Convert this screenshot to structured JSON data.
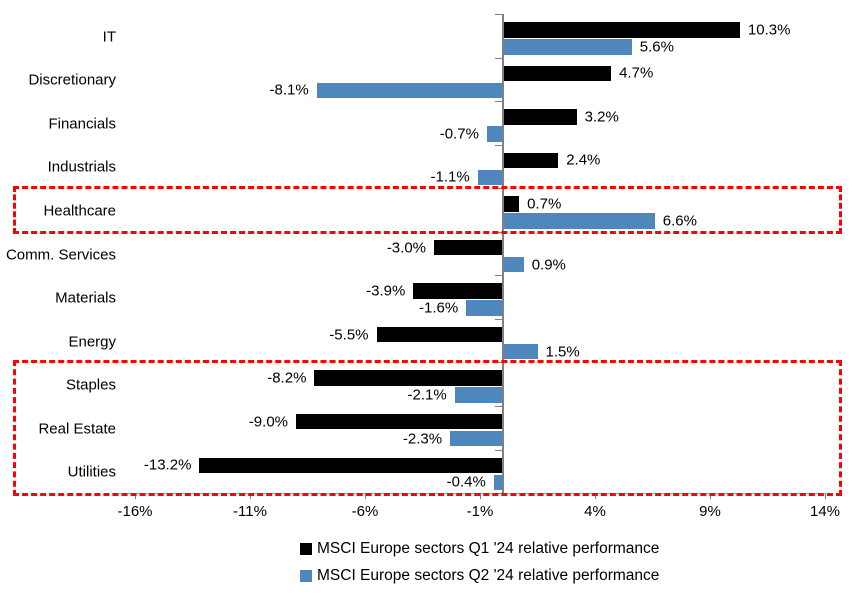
{
  "chart_data": {
    "type": "bar",
    "orientation": "horizontal",
    "title": "",
    "categories": [
      "IT",
      "Discretionary",
      "Financials",
      "Industrials",
      "Healthcare",
      "Comm. Services",
      "Materials",
      "Energy",
      "Staples",
      "Real Estate",
      "Utilities"
    ],
    "series": [
      {
        "name": "MSCI Europe sectors Q1 '24 relative performance",
        "color": "#000000",
        "values": [
          10.3,
          4.7,
          3.2,
          2.4,
          0.7,
          -3.0,
          -3.9,
          -5.5,
          -8.2,
          -9.0,
          -13.2
        ],
        "labels": [
          "10.3%",
          "4.7%",
          "3.2%",
          "2.4%",
          "0.7%",
          "-3.0%",
          "-3.9%",
          "-5.5%",
          "-8.2%",
          "-9.0%",
          "-13.2%"
        ]
      },
      {
        "name": "MSCI Europe sectors Q2 '24 relative performance",
        "color": "#4e86be",
        "values": [
          5.6,
          -8.1,
          -0.7,
          -1.1,
          6.6,
          0.9,
          -1.6,
          1.5,
          -2.1,
          -2.3,
          -0.4
        ],
        "labels": [
          "5.6%",
          "-8.1%",
          "-0.7%",
          "-1.1%",
          "6.6%",
          "0.9%",
          "-1.6%",
          "1.5%",
          "-2.1%",
          "-2.3%",
          "-0.4%"
        ]
      }
    ],
    "x_axis": {
      "tick_labels": [
        "-16%",
        "-11%",
        "-6%",
        "-1%",
        "4%",
        "9%",
        "14%"
      ],
      "tick_values": [
        -16,
        -11,
        -6,
        -1,
        4,
        9,
        14
      ],
      "xlim": [
        -17,
        14
      ]
    },
    "grid": false,
    "legend_position": "bottom",
    "axis_color": "#808080",
    "highlight_boxes": [
      {
        "from_category": "Healthcare",
        "to_category": "Healthcare",
        "color": "#ff0000",
        "style": "dashed"
      },
      {
        "from_category": "Staples",
        "to_category": "Utilities",
        "color": "#ff0000",
        "style": "dashed"
      }
    ]
  }
}
